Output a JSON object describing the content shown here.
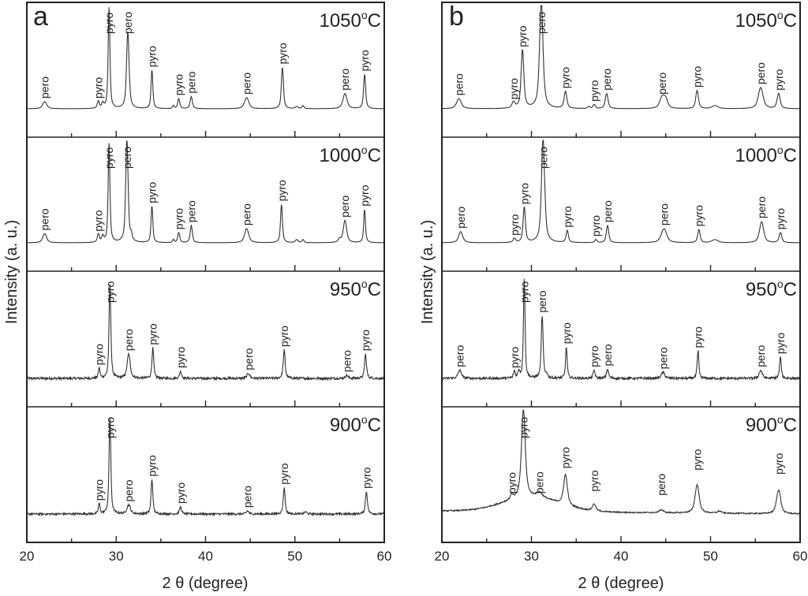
{
  "chart_data": [
    {
      "type": "line",
      "panel": "a",
      "xlabel": "2 θ (degree)",
      "ylabel": "Intensity (a. u.)",
      "xlim": [
        20,
        60
      ],
      "xticks": [
        20,
        30,
        40,
        50,
        60
      ],
      "minor_xticks": [
        25,
        35,
        45,
        55
      ],
      "y_units": "arbitrary",
      "series": [
        {
          "name": "1050°C",
          "temp": "1050",
          "noise": 0.0,
          "background": "flat",
          "peaks": [
            {
              "x": 22.0,
              "h": 0.07,
              "w": 0.3,
              "label": "pero"
            },
            {
              "x": 28.0,
              "h": 0.07,
              "w": 0.15,
              "label": "pyro"
            },
            {
              "x": 28.5,
              "h": 0.05,
              "w": 0.15,
              "label": ""
            },
            {
              "x": 29.2,
              "h": 1.0,
              "w": 0.13,
              "label": "pyro"
            },
            {
              "x": 31.3,
              "h": 0.76,
              "w": 0.18,
              "label": "pero"
            },
            {
              "x": 34.0,
              "h": 0.38,
              "w": 0.13,
              "label": "pyro"
            },
            {
              "x": 36.4,
              "h": 0.03,
              "w": 0.12,
              "label": ""
            },
            {
              "x": 37.0,
              "h": 0.1,
              "w": 0.15,
              "label": "pyro"
            },
            {
              "x": 38.4,
              "h": 0.12,
              "w": 0.17,
              "label": "pero"
            },
            {
              "x": 44.6,
              "h": 0.11,
              "w": 0.32,
              "label": "pero"
            },
            {
              "x": 48.6,
              "h": 0.41,
              "w": 0.15,
              "label": "pyro"
            },
            {
              "x": 50.2,
              "h": 0.02,
              "w": 0.2,
              "label": ""
            },
            {
              "x": 50.9,
              "h": 0.03,
              "w": 0.15,
              "label": ""
            },
            {
              "x": 55.6,
              "h": 0.15,
              "w": 0.3,
              "label": "pero"
            },
            {
              "x": 57.8,
              "h": 0.34,
              "w": 0.15,
              "label": "pyro"
            }
          ]
        },
        {
          "name": "1000°C",
          "temp": "1000",
          "noise": 0.0,
          "background": "flat",
          "peaks": [
            {
              "x": 22.0,
              "h": 0.09,
              "w": 0.28,
              "label": "pero"
            },
            {
              "x": 28.0,
              "h": 0.08,
              "w": 0.15,
              "label": "pyro"
            },
            {
              "x": 28.5,
              "h": 0.06,
              "w": 0.15,
              "label": ""
            },
            {
              "x": 29.2,
              "h": 0.98,
              "w": 0.13,
              "label": "pyro"
            },
            {
              "x": 31.2,
              "h": 1.04,
              "w": 0.17,
              "label": "pero"
            },
            {
              "x": 31.7,
              "h": 0.06,
              "w": 0.12,
              "label": ""
            },
            {
              "x": 34.0,
              "h": 0.36,
              "w": 0.13,
              "label": "pyro"
            },
            {
              "x": 36.4,
              "h": 0.03,
              "w": 0.12,
              "label": ""
            },
            {
              "x": 37.0,
              "h": 0.1,
              "w": 0.15,
              "label": "pyro"
            },
            {
              "x": 38.4,
              "h": 0.17,
              "w": 0.16,
              "label": "pero"
            },
            {
              "x": 44.6,
              "h": 0.14,
              "w": 0.3,
              "label": "pero"
            },
            {
              "x": 48.5,
              "h": 0.38,
              "w": 0.14,
              "label": "pyro"
            },
            {
              "x": 50.2,
              "h": 0.03,
              "w": 0.2,
              "label": ""
            },
            {
              "x": 50.9,
              "h": 0.03,
              "w": 0.15,
              "label": ""
            },
            {
              "x": 55.0,
              "h": 0.03,
              "w": 0.2,
              "label": ""
            },
            {
              "x": 55.6,
              "h": 0.22,
              "w": 0.25,
              "label": "pero"
            },
            {
              "x": 57.8,
              "h": 0.33,
              "w": 0.13,
              "label": "pyro"
            }
          ]
        },
        {
          "name": "950°C",
          "temp": "950",
          "noise": 0.012,
          "background": "flat",
          "peaks": [
            {
              "x": 28.1,
              "h": 0.1,
              "w": 0.12,
              "label": "pyro"
            },
            {
              "x": 29.3,
              "h": 0.94,
              "w": 0.13,
              "label": "pyro"
            },
            {
              "x": 31.4,
              "h": 0.24,
              "w": 0.22,
              "label": "pero"
            },
            {
              "x": 34.1,
              "h": 0.3,
              "w": 0.13,
              "label": "pyro"
            },
            {
              "x": 37.2,
              "h": 0.07,
              "w": 0.15,
              "label": "pyro"
            },
            {
              "x": 44.8,
              "h": 0.05,
              "w": 0.2,
              "label": "pero"
            },
            {
              "x": 48.8,
              "h": 0.28,
              "w": 0.14,
              "label": "pyro"
            },
            {
              "x": 55.8,
              "h": 0.03,
              "w": 0.2,
              "label": "pero"
            },
            {
              "x": 57.9,
              "h": 0.24,
              "w": 0.14,
              "label": "pyro"
            }
          ]
        },
        {
          "name": "900°C",
          "temp": "900",
          "noise": 0.01,
          "background": "flat",
          "peaks": [
            {
              "x": 28.1,
              "h": 0.1,
              "w": 0.12,
              "label": "pyro"
            },
            {
              "x": 29.3,
              "h": 0.96,
              "w": 0.13,
              "label": "pyro"
            },
            {
              "x": 31.4,
              "h": 0.09,
              "w": 0.25,
              "label": "pero"
            },
            {
              "x": 34.0,
              "h": 0.34,
              "w": 0.13,
              "label": "pyro"
            },
            {
              "x": 37.2,
              "h": 0.07,
              "w": 0.15,
              "label": "pyro"
            },
            {
              "x": 44.7,
              "h": 0.03,
              "w": 0.18,
              "label": "pero"
            },
            {
              "x": 48.8,
              "h": 0.26,
              "w": 0.14,
              "label": "pyro"
            },
            {
              "x": 51.2,
              "h": 0.02,
              "w": 0.18,
              "label": ""
            },
            {
              "x": 58.0,
              "h": 0.22,
              "w": 0.15,
              "label": "pyro"
            }
          ]
        }
      ]
    },
    {
      "type": "line",
      "panel": "b",
      "xlabel": "2 θ (degree)",
      "ylabel": "Intensity (a. u.)",
      "xlim": [
        20,
        60
      ],
      "xticks": [
        20,
        30,
        40,
        50,
        60
      ],
      "minor_xticks": [
        25,
        35,
        45,
        55
      ],
      "y_units": "arbitrary",
      "series": [
        {
          "name": "1050°C",
          "temp": "1050",
          "noise": 0.0,
          "background": "flat",
          "peaks": [
            {
              "x": 21.9,
              "h": 0.1,
              "w": 0.35,
              "label": "pero"
            },
            {
              "x": 28.0,
              "h": 0.06,
              "w": 0.22,
              "label": "pyro"
            },
            {
              "x": 29.0,
              "h": 0.58,
              "w": 0.2,
              "label": "pyro"
            },
            {
              "x": 31.1,
              "h": 1.07,
              "w": 0.25,
              "label": "pero"
            },
            {
              "x": 33.8,
              "h": 0.17,
              "w": 0.2,
              "label": "pyro"
            },
            {
              "x": 36.4,
              "h": 0.02,
              "w": 0.15,
              "label": ""
            },
            {
              "x": 37.0,
              "h": 0.04,
              "w": 0.18,
              "label": "pyro"
            },
            {
              "x": 38.4,
              "h": 0.15,
              "w": 0.2,
              "label": "pero"
            },
            {
              "x": 44.6,
              "h": 0.11,
              "w": 0.35,
              "label": "pero"
            },
            {
              "x": 45.0,
              "h": 0.08,
              "w": 0.3,
              "label": ""
            },
            {
              "x": 48.5,
              "h": 0.18,
              "w": 0.2,
              "label": "pyro"
            },
            {
              "x": 50.5,
              "h": 0.03,
              "w": 0.45,
              "label": ""
            },
            {
              "x": 55.6,
              "h": 0.21,
              "w": 0.35,
              "label": "pero"
            },
            {
              "x": 57.6,
              "h": 0.15,
              "w": 0.22,
              "label": "pyro"
            }
          ]
        },
        {
          "name": "1000°C",
          "temp": "1000",
          "noise": 0.0,
          "background": "flat",
          "peaks": [
            {
              "x": 22.1,
              "h": 0.11,
              "w": 0.3,
              "label": "pero"
            },
            {
              "x": 28.1,
              "h": 0.04,
              "w": 0.18,
              "label": "pyro"
            },
            {
              "x": 29.2,
              "h": 0.35,
              "w": 0.17,
              "label": "pyro"
            },
            {
              "x": 31.3,
              "h": 1.05,
              "w": 0.23,
              "label": "pero"
            },
            {
              "x": 34.0,
              "h": 0.12,
              "w": 0.17,
              "label": "pyro"
            },
            {
              "x": 37.2,
              "h": 0.03,
              "w": 0.16,
              "label": "pyro"
            },
            {
              "x": 38.5,
              "h": 0.17,
              "w": 0.18,
              "label": "pero"
            },
            {
              "x": 44.8,
              "h": 0.14,
              "w": 0.4,
              "label": "pero"
            },
            {
              "x": 48.7,
              "h": 0.13,
              "w": 0.18,
              "label": "pyro"
            },
            {
              "x": 50.5,
              "h": 0.03,
              "w": 0.45,
              "label": ""
            },
            {
              "x": 55.7,
              "h": 0.21,
              "w": 0.3,
              "label": "pero"
            },
            {
              "x": 57.8,
              "h": 0.1,
              "w": 0.2,
              "label": "pyro"
            }
          ]
        },
        {
          "name": "950°C",
          "temp": "950",
          "noise": 0.012,
          "background": "flat",
          "peaks": [
            {
              "x": 22.0,
              "h": 0.08,
              "w": 0.25,
              "label": "pero"
            },
            {
              "x": 28.1,
              "h": 0.07,
              "w": 0.13,
              "label": "pyro"
            },
            {
              "x": 28.6,
              "h": 0.07,
              "w": 0.13,
              "label": ""
            },
            {
              "x": 29.2,
              "h": 0.98,
              "w": 0.12,
              "label": "pyro"
            },
            {
              "x": 31.2,
              "h": 0.62,
              "w": 0.14,
              "label": "pero"
            },
            {
              "x": 31.7,
              "h": 0.04,
              "w": 0.12,
              "label": ""
            },
            {
              "x": 33.9,
              "h": 0.31,
              "w": 0.12,
              "label": "pyro"
            },
            {
              "x": 37.0,
              "h": 0.08,
              "w": 0.14,
              "label": "pyro"
            },
            {
              "x": 38.5,
              "h": 0.09,
              "w": 0.15,
              "label": "pero"
            },
            {
              "x": 44.7,
              "h": 0.06,
              "w": 0.25,
              "label": "pero"
            },
            {
              "x": 48.6,
              "h": 0.27,
              "w": 0.12,
              "label": "pyro"
            },
            {
              "x": 55.6,
              "h": 0.08,
              "w": 0.22,
              "label": "pero"
            },
            {
              "x": 57.8,
              "h": 0.21,
              "w": 0.13,
              "label": "pyro"
            }
          ]
        },
        {
          "name": "900°C",
          "temp": "900",
          "noise": 0.006,
          "background": "amorphous-hump",
          "peaks": [
            {
              "x": 27.8,
              "h": 0.05,
              "w": 0.2,
              "label": "pyro"
            },
            {
              "x": 29.1,
              "h": 0.88,
              "w": 0.28,
              "label": "pyro"
            },
            {
              "x": 30.9,
              "h": 0.05,
              "w": 0.45,
              "label": "pero"
            },
            {
              "x": 33.8,
              "h": 0.3,
              "w": 0.28,
              "label": "pyro"
            },
            {
              "x": 37.0,
              "h": 0.07,
              "w": 0.25,
              "label": "pyro"
            },
            {
              "x": 44.5,
              "h": 0.03,
              "w": 0.3,
              "label": "pero"
            },
            {
              "x": 48.5,
              "h": 0.28,
              "w": 0.3,
              "label": "pyro"
            },
            {
              "x": 51.0,
              "h": 0.02,
              "w": 0.3,
              "label": ""
            },
            {
              "x": 57.6,
              "h": 0.24,
              "w": 0.3,
              "label": "pyro"
            }
          ]
        }
      ]
    }
  ],
  "labels": {
    "panel_a": "a",
    "panel_b": "b",
    "xlabel": "2 θ (degree)",
    "ylabel": "Intensity (a. u.)",
    "degree_symbol": "o",
    "celsius": "C"
  }
}
